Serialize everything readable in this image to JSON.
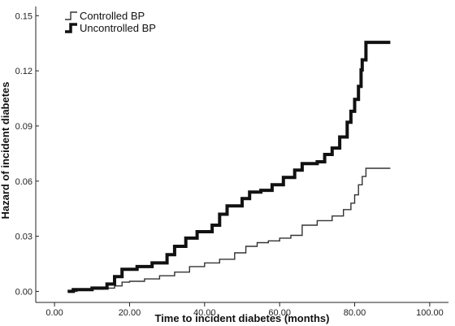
{
  "chart_data": {
    "type": "line",
    "title": "",
    "xlabel": "Time to incident diabetes (months)",
    "ylabel": "Hazard of incident diabetes",
    "xlim": [
      -5,
      105
    ],
    "ylim": [
      -0.006,
      0.155
    ],
    "x_ticks": [
      0,
      20,
      40,
      60,
      80,
      100
    ],
    "x_tick_labels": [
      "0.00",
      "20.00",
      "40.00",
      "60.00",
      "80.00",
      "100.00"
    ],
    "y_ticks": [
      0,
      0.03,
      0.06,
      0.09,
      0.12,
      0.15
    ],
    "y_tick_labels": [
      "0.00",
      "0.03",
      "0.06",
      "0.09",
      "0.12",
      "0.15"
    ],
    "grid": false,
    "legend": {
      "position": "top-left"
    },
    "series": [
      {
        "name": "Controlled BP",
        "color": "#333333",
        "style": "thin",
        "points": [
          [
            3.5,
            0.0
          ],
          [
            6,
            0.001
          ],
          [
            10,
            0.0012
          ],
          [
            13,
            0.0018
          ],
          [
            16,
            0.003
          ],
          [
            18,
            0.005
          ],
          [
            20,
            0.0055
          ],
          [
            24,
            0.0068
          ],
          [
            28,
            0.0085
          ],
          [
            32,
            0.0105
          ],
          [
            36,
            0.0135
          ],
          [
            40,
            0.0155
          ],
          [
            44,
            0.0175
          ],
          [
            48,
            0.021
          ],
          [
            51,
            0.0245
          ],
          [
            54,
            0.0265
          ],
          [
            57,
            0.0275
          ],
          [
            60,
            0.029
          ],
          [
            63,
            0.0305
          ],
          [
            66,
            0.036
          ],
          [
            70,
            0.0385
          ],
          [
            74,
            0.041
          ],
          [
            77,
            0.0445
          ],
          [
            79,
            0.048
          ],
          [
            80,
            0.0525
          ],
          [
            81,
            0.058
          ],
          [
            82,
            0.0625
          ],
          [
            83,
            0.067
          ],
          [
            89.5,
            0.067
          ]
        ]
      },
      {
        "name": "Uncontrolled BP",
        "color": "#111111",
        "style": "thick",
        "points": [
          [
            3.5,
            0.0
          ],
          [
            5,
            0.001
          ],
          [
            10,
            0.0018
          ],
          [
            14,
            0.004
          ],
          [
            16,
            0.008
          ],
          [
            18,
            0.012
          ],
          [
            22,
            0.0135
          ],
          [
            26,
            0.0155
          ],
          [
            30,
            0.02
          ],
          [
            32,
            0.0245
          ],
          [
            35,
            0.029
          ],
          [
            38,
            0.0325
          ],
          [
            42,
            0.036
          ],
          [
            44,
            0.042
          ],
          [
            46,
            0.0465
          ],
          [
            50,
            0.0505
          ],
          [
            52,
            0.054
          ],
          [
            55,
            0.055
          ],
          [
            58,
            0.058
          ],
          [
            61,
            0.062
          ],
          [
            64,
            0.066
          ],
          [
            66,
            0.0695
          ],
          [
            70,
            0.0705
          ],
          [
            72,
            0.0745
          ],
          [
            74,
            0.078
          ],
          [
            76,
            0.084
          ],
          [
            78,
            0.092
          ],
          [
            79,
            0.098
          ],
          [
            80,
            0.1045
          ],
          [
            81,
            0.1115
          ],
          [
            81.7,
            0.1205
          ],
          [
            82,
            0.126
          ],
          [
            83,
            0.1355
          ],
          [
            89.5,
            0.1355
          ]
        ]
      }
    ]
  }
}
